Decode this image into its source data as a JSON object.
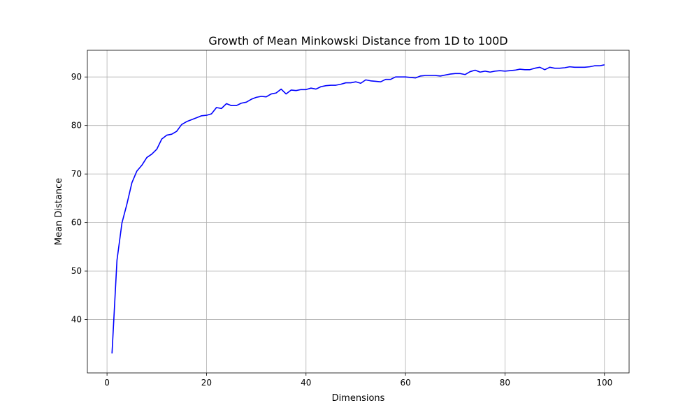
{
  "chart_data": {
    "type": "line",
    "title": "Growth of Mean Minkowski Distance from 1D to 100D",
    "xlabel": "Dimensions",
    "ylabel": "Mean Distance",
    "xlim": [
      -3.95,
      104.95
    ],
    "ylim": [
      29.0,
      95.5
    ],
    "xticks": [
      0,
      20,
      40,
      60,
      80,
      100
    ],
    "yticks": [
      40,
      50,
      60,
      70,
      80,
      90
    ],
    "grid": true,
    "series": [
      {
        "color": "#0000ff",
        "x": [
          1,
          2,
          3,
          4,
          5,
          6,
          7,
          8,
          9,
          10,
          11,
          12,
          13,
          14,
          15,
          16,
          17,
          18,
          19,
          20,
          21,
          22,
          23,
          24,
          25,
          26,
          27,
          28,
          29,
          30,
          31,
          32,
          33,
          34,
          35,
          36,
          37,
          38,
          39,
          40,
          41,
          42,
          43,
          44,
          45,
          46,
          47,
          48,
          49,
          50,
          51,
          52,
          53,
          54,
          55,
          56,
          57,
          58,
          59,
          60,
          61,
          62,
          63,
          64,
          65,
          66,
          67,
          68,
          69,
          70,
          71,
          72,
          73,
          74,
          75,
          76,
          77,
          78,
          79,
          80,
          81,
          82,
          83,
          84,
          85,
          86,
          87,
          88,
          89,
          90,
          91,
          92,
          93,
          94,
          95,
          96,
          97,
          98,
          99,
          100
        ],
        "y": [
          33.0,
          52.2,
          59.9,
          63.8,
          68.2,
          70.6,
          71.8,
          73.4,
          74.1,
          75.1,
          77.2,
          78.0,
          78.2,
          78.8,
          80.2,
          80.8,
          81.2,
          81.6,
          82.0,
          82.1,
          82.4,
          83.7,
          83.5,
          84.5,
          84.1,
          84.1,
          84.6,
          84.8,
          85.4,
          85.8,
          86.0,
          85.9,
          86.5,
          86.7,
          87.5,
          86.5,
          87.3,
          87.2,
          87.4,
          87.4,
          87.7,
          87.5,
          88.0,
          88.2,
          88.3,
          88.3,
          88.5,
          88.8,
          88.8,
          89.0,
          88.7,
          89.4,
          89.2,
          89.1,
          89.0,
          89.5,
          89.5,
          90.0,
          90.0,
          90.0,
          89.9,
          89.8,
          90.2,
          90.3,
          90.3,
          90.3,
          90.2,
          90.4,
          90.6,
          90.7,
          90.7,
          90.5,
          91.1,
          91.4,
          91.0,
          91.2,
          91.0,
          91.2,
          91.3,
          91.2,
          91.3,
          91.4,
          91.6,
          91.5,
          91.5,
          91.8,
          92.0,
          91.5,
          92.0,
          91.8,
          91.8,
          91.9,
          92.1,
          92.0,
          92.0,
          92.0,
          92.1,
          92.3,
          92.3,
          92.5
        ]
      }
    ]
  }
}
